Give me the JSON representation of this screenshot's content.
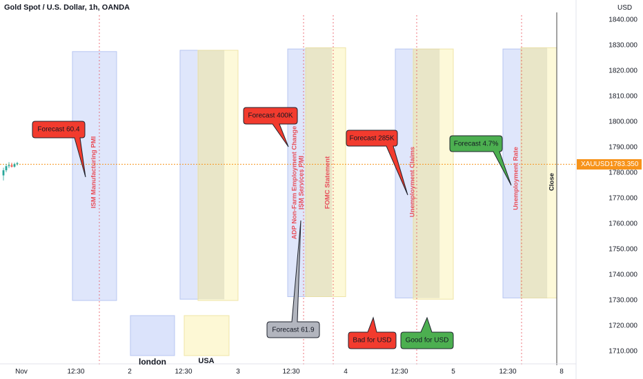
{
  "header": {
    "title": "Gold Spot / U.S. Dollar, 1h, OANDA",
    "currency": "USD"
  },
  "price_badge": {
    "symbol": "XAUUSD",
    "price": "1783.350"
  },
  "chart_data": {
    "type": "line",
    "title": "Gold Spot / U.S. Dollar, 1h, OANDA",
    "y_axis": {
      "unit": "USD",
      "ylim": [
        1705,
        1845
      ],
      "ticks": [
        "1840.000",
        "1830.000",
        "1820.000",
        "1810.000",
        "1800.000",
        "1790.000",
        "1780.000",
        "1770.000",
        "1760.000",
        "1750.000",
        "1740.000",
        "1730.000",
        "1720.000",
        "1710.000"
      ]
    },
    "x_axis": {
      "ticks": [
        "Nov",
        "12:30",
        "2",
        "12:30",
        "3",
        "12:30",
        "4",
        "12:30",
        "5",
        "12:30",
        "8"
      ]
    },
    "current_price": 1783.35,
    "candles": [
      {
        "o": 1779.0,
        "h": 1782.0,
        "l": 1777.0,
        "c": 1781.0,
        "dir": "up"
      },
      {
        "o": 1781.0,
        "h": 1783.5,
        "l": 1780.2,
        "c": 1782.6,
        "dir": "up"
      },
      {
        "o": 1782.6,
        "h": 1784.2,
        "l": 1781.8,
        "c": 1783.0,
        "dir": "up"
      },
      {
        "o": 1783.0,
        "h": 1784.0,
        "l": 1782.0,
        "c": 1782.4,
        "dir": "down"
      },
      {
        "o": 1782.4,
        "h": 1784.0,
        "l": 1782.0,
        "c": 1783.4,
        "dir": "up"
      },
      {
        "o": 1783.4,
        "h": 1784.3,
        "l": 1782.8,
        "c": 1783.8,
        "dir": "up"
      }
    ],
    "events": [
      {
        "label": "ISM Manufacturing PMI",
        "forecast": "Forecast 60.4",
        "forecast_color": "#f23b2e"
      },
      {
        "label": "ADP Non-Farm Employment Change",
        "label2": "ISM Services PMI",
        "forecast": "Forecast 400K",
        "forecast_color": "#f23b2e",
        "actual": "Forecast 61.9",
        "actual_color": "#b2b5be"
      },
      {
        "label": "FOMC Statement"
      },
      {
        "label": "Unemployment Claims",
        "forecast": "Forecast 285K",
        "forecast_color": "#f23b2e"
      },
      {
        "label": "Unemployment Rate",
        "forecast": "Forecast 4.7%",
        "forecast_color": "#4caf50"
      },
      {
        "label": "Close"
      }
    ],
    "sessions": [
      {
        "name": "london",
        "color": "#dbe3fb"
      },
      {
        "name": "USA",
        "color": "#fdf8d5"
      }
    ],
    "key": [
      {
        "text": "Bad for USD",
        "color": "#f23b2e"
      },
      {
        "text": "Good for USD",
        "color": "#4caf50"
      }
    ],
    "grid": false
  }
}
